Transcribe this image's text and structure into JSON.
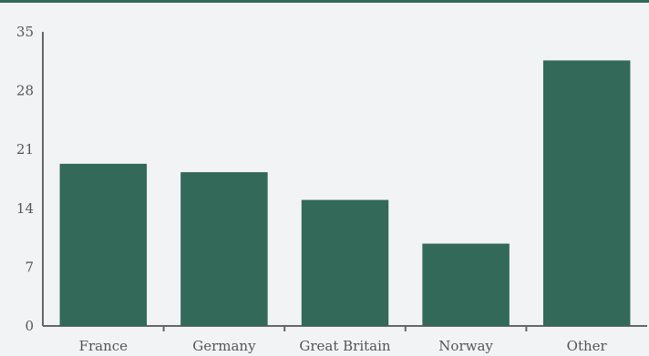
{
  "chart_data": {
    "type": "bar",
    "categories": [
      "France",
      "Germany",
      "Great Britain",
      "Norway",
      "Other"
    ],
    "values": [
      19.3,
      18.3,
      15.0,
      9.8,
      31.6
    ],
    "ylim": [
      0,
      35
    ],
    "yticks": [
      0,
      7,
      14,
      21,
      28,
      35
    ],
    "grid": false,
    "legend": "none"
  },
  "colors": {
    "bar": "#336958",
    "top_rule": "#336958",
    "axis": "#666666",
    "background": "#f2f3f5"
  }
}
